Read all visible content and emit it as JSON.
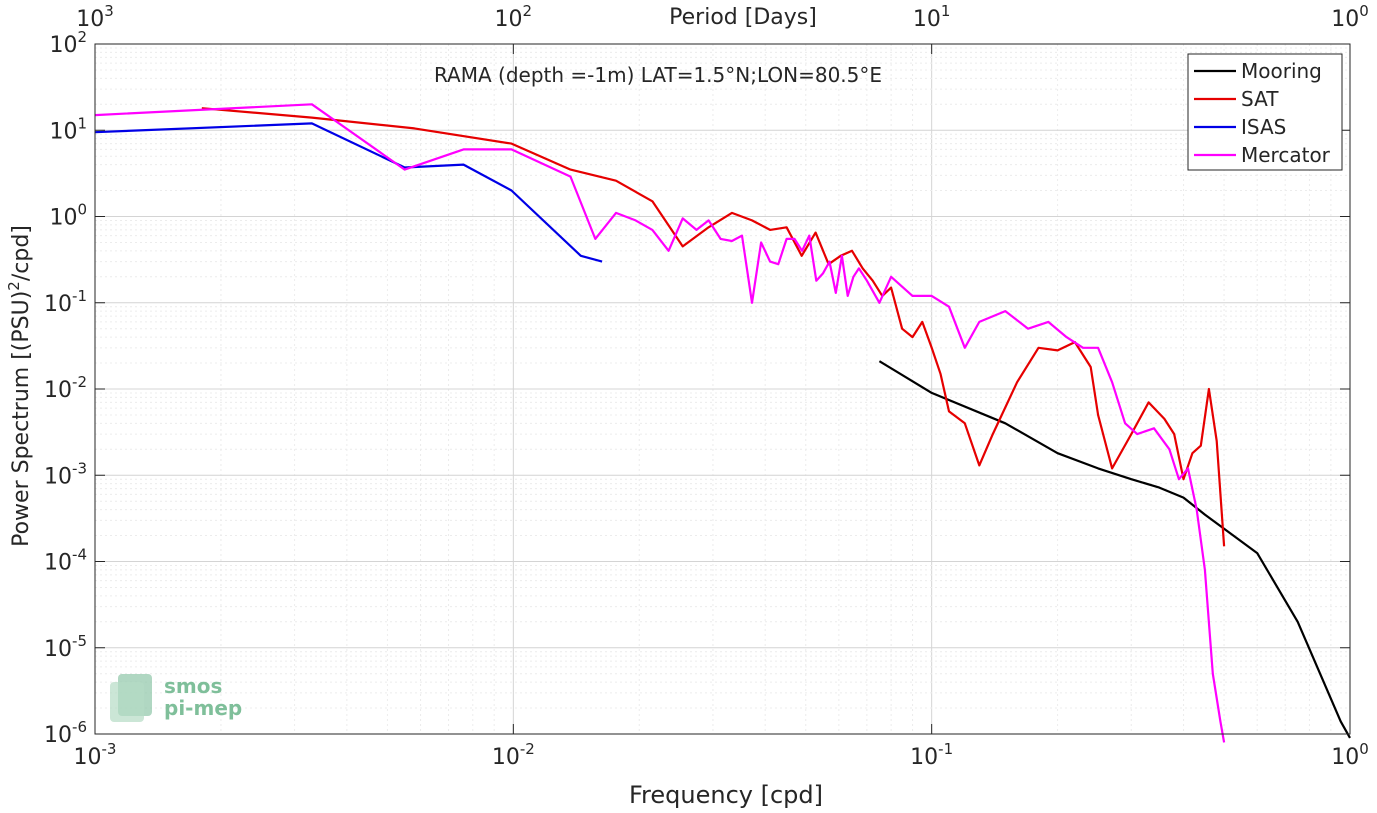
{
  "chart_data": {
    "type": "line",
    "title": "RAMA (depth =-1m) LAT=1.5°N;LON=80.5°E",
    "xlabel": "Frequency [cpd]",
    "ylabel_main": "Power Spectrum [(PSU)",
    "ylabel_sup": "2",
    "ylabel_tail": "/cpd]",
    "top_xlabel": "Period [Days]",
    "xscale": "log",
    "yscale": "log",
    "xlim": [
      0.001,
      1
    ],
    "ylim": [
      1e-06,
      100
    ],
    "grid": true,
    "legend_position": "top-right",
    "x_ticks": [
      {
        "base": "10",
        "exp": "-3"
      },
      {
        "base": "10",
        "exp": "-2"
      },
      {
        "base": "10",
        "exp": "-1"
      },
      {
        "base": "10",
        "exp": "0"
      }
    ],
    "y_ticks": [
      {
        "base": "10",
        "exp": "-6"
      },
      {
        "base": "10",
        "exp": "-5"
      },
      {
        "base": "10",
        "exp": "-4"
      },
      {
        "base": "10",
        "exp": "-3"
      },
      {
        "base": "10",
        "exp": "-2"
      },
      {
        "base": "10",
        "exp": "-1"
      },
      {
        "base": "10",
        "exp": "0"
      },
      {
        "base": "10",
        "exp": "1"
      },
      {
        "base": "10",
        "exp": "2"
      }
    ],
    "top_ticks": [
      {
        "base": "10",
        "exp": "3"
      },
      {
        "base": "10",
        "exp": "2"
      },
      {
        "base": "10",
        "exp": "1"
      },
      {
        "base": "10",
        "exp": "0"
      }
    ],
    "series": [
      {
        "name": "Mooring",
        "color": "#000000",
        "x": [
          0.075,
          0.1,
          0.15,
          0.2,
          0.25,
          0.3,
          0.35,
          0.4,
          0.45,
          0.5,
          0.6,
          0.75,
          0.95,
          1.0
        ],
        "y": [
          0.021,
          0.009,
          0.004,
          0.0018,
          0.0012,
          0.0009,
          0.00072,
          0.00055,
          0.00035,
          0.00024,
          0.000125,
          2e-05,
          1.4e-06,
          9e-07
        ]
      },
      {
        "name": "SAT",
        "color": "#e60000",
        "x": [
          0.0018,
          0.0033,
          0.0058,
          0.0099,
          0.0137,
          0.0176,
          0.0215,
          0.0254,
          0.0293,
          0.0333,
          0.0372,
          0.0411,
          0.045,
          0.0489,
          0.0528,
          0.0567,
          0.0606,
          0.0645,
          0.0684,
          0.0723,
          0.0762,
          0.08,
          0.085,
          0.09,
          0.095,
          0.1,
          0.105,
          0.11,
          0.12,
          0.13,
          0.14,
          0.16,
          0.18,
          0.2,
          0.22,
          0.24,
          0.25,
          0.27,
          0.3,
          0.33,
          0.36,
          0.38,
          0.4,
          0.42,
          0.44,
          0.46,
          0.48,
          0.5
        ],
        "y": [
          18,
          14,
          10.5,
          7,
          3.5,
          2.6,
          1.5,
          0.45,
          0.75,
          1.1,
          0.9,
          0.7,
          0.75,
          0.35,
          0.65,
          0.28,
          0.35,
          0.4,
          0.25,
          0.18,
          0.12,
          0.15,
          0.05,
          0.04,
          0.06,
          0.03,
          0.015,
          0.0055,
          0.004,
          0.0013,
          0.003,
          0.012,
          0.03,
          0.028,
          0.035,
          0.018,
          0.005,
          0.0012,
          0.003,
          0.007,
          0.0045,
          0.003,
          0.0009,
          0.0018,
          0.0022,
          0.01,
          0.0025,
          0.00015
        ]
      },
      {
        "name": "ISAS",
        "color": "#0000e6",
        "x": [
          0.001,
          0.0033,
          0.0055,
          0.0076,
          0.0099,
          0.0145,
          0.0163
        ],
        "y": [
          9.5,
          12,
          3.7,
          4.0,
          2.0,
          0.35,
          0.3
        ]
      },
      {
        "name": "Mercator",
        "color": "#ff00ff",
        "x": [
          0.001,
          0.0033,
          0.0055,
          0.0076,
          0.0099,
          0.0137,
          0.0157,
          0.0176,
          0.0196,
          0.0215,
          0.0235,
          0.0254,
          0.0274,
          0.0293,
          0.0313,
          0.0333,
          0.0352,
          0.0372,
          0.0391,
          0.0411,
          0.043,
          0.045,
          0.047,
          0.049,
          0.051,
          0.053,
          0.055,
          0.057,
          0.059,
          0.061,
          0.063,
          0.065,
          0.067,
          0.07,
          0.075,
          0.08,
          0.09,
          0.1,
          0.11,
          0.12,
          0.13,
          0.15,
          0.17,
          0.19,
          0.21,
          0.23,
          0.25,
          0.27,
          0.29,
          0.31,
          0.34,
          0.37,
          0.39,
          0.41,
          0.43,
          0.45,
          0.47,
          0.49,
          0.5
        ],
        "y": [
          15,
          20,
          3.5,
          6,
          6,
          2.9,
          0.55,
          1.1,
          0.9,
          0.7,
          0.4,
          0.95,
          0.7,
          0.9,
          0.55,
          0.52,
          0.6,
          0.1,
          0.5,
          0.3,
          0.28,
          0.55,
          0.55,
          0.4,
          0.6,
          0.18,
          0.22,
          0.3,
          0.13,
          0.35,
          0.12,
          0.2,
          0.25,
          0.18,
          0.1,
          0.2,
          0.12,
          0.12,
          0.09,
          0.03,
          0.06,
          0.08,
          0.05,
          0.06,
          0.04,
          0.03,
          0.03,
          0.012,
          0.004,
          0.003,
          0.0035,
          0.002,
          0.0009,
          0.0012,
          0.0004,
          8e-05,
          5e-06,
          1.4e-06,
          8e-07
        ]
      }
    ]
  },
  "watermark": {
    "line1": "smos",
    "line2": "pi-mep"
  }
}
